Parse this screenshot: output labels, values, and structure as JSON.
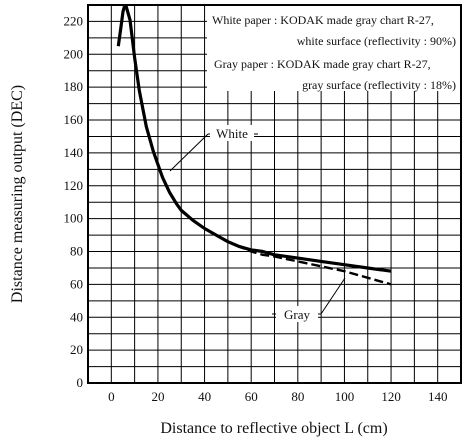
{
  "chart_data": {
    "type": "line",
    "xlabel": "Distance to reflective object L (cm)",
    "ylabel": "Distance measuring output (DEC)",
    "xlim": [
      -10,
      150
    ],
    "ylim": [
      0,
      230
    ],
    "x_ticks": [
      0,
      20,
      40,
      60,
      80,
      100,
      120,
      140
    ],
    "y_ticks": [
      0,
      20,
      40,
      60,
      80,
      100,
      120,
      140,
      160,
      180,
      200,
      220
    ],
    "grid": true,
    "legend_note": [
      "White paper : KODAK made gray chart R-27,",
      "white surface (reflectivity : 90%)",
      "Gray paper : KODAK made gray chart R-27,",
      "gray surface (reflectivity : 18%)"
    ],
    "series": [
      {
        "name": "White",
        "style": "solid",
        "color": "#000000",
        "x": [
          3,
          4,
          5,
          6,
          8,
          10,
          12,
          15,
          18,
          20,
          22,
          25,
          28,
          30,
          35,
          40,
          45,
          50,
          55,
          60,
          65,
          70,
          80,
          90,
          100,
          110,
          120
        ],
        "y": [
          205,
          215,
          226,
          231,
          221,
          198,
          178,
          156,
          141,
          133,
          125,
          116,
          109,
          105,
          99,
          94,
          90,
          86,
          83,
          81,
          80,
          78,
          76,
          74,
          72,
          70,
          68
        ]
      },
      {
        "name": "Gray",
        "style": "dashed",
        "color": "#000000",
        "x": [
          3,
          4,
          5,
          6,
          8,
          10,
          12,
          15,
          18,
          20,
          22,
          25,
          28,
          30,
          35,
          40,
          45,
          50,
          55,
          60,
          65,
          70,
          80,
          90,
          100,
          110,
          120
        ],
        "y": [
          205,
          215,
          226,
          231,
          221,
          198,
          178,
          156,
          141,
          133,
          125,
          116,
          109,
          105,
          99,
          94,
          90,
          86,
          83,
          80,
          78,
          77,
          74,
          71,
          68,
          64,
          60
        ]
      }
    ],
    "annotations": [
      {
        "label": "White",
        "series": "White"
      },
      {
        "label": "Gray",
        "series": "Gray"
      }
    ]
  }
}
